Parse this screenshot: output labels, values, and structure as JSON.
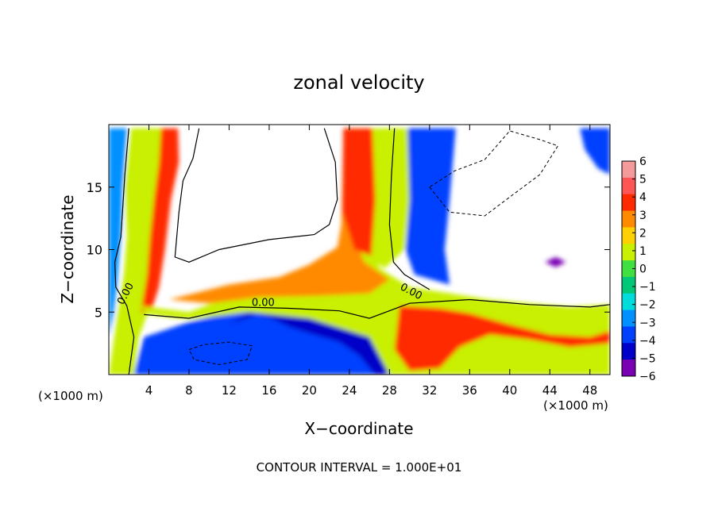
{
  "chart_data": {
    "type": "heatmap",
    "title": "zonal velocity",
    "xlabel": "X−coordinate",
    "ylabel": "Z−coordinate",
    "x_unit_left": "(×1000 m)",
    "x_unit_right": "(×1000 m)",
    "footer": "CONTOUR INTERVAL = 1.000E+01",
    "xlim": [
      0,
      50
    ],
    "ylim": [
      0,
      20
    ],
    "xticks": [
      4,
      8,
      12,
      16,
      20,
      24,
      28,
      32,
      36,
      40,
      44,
      48
    ],
    "yticks": [
      5,
      10,
      15
    ],
    "colorbar": {
      "ticks": [
        6,
        5,
        4,
        3,
        2,
        1,
        0,
        -1,
        -2,
        -3,
        -4,
        -5,
        -6
      ],
      "tick_labels": [
        "6",
        "5",
        "4",
        "3",
        "2",
        "1",
        "0",
        "−1",
        "−2",
        "−3",
        "−4",
        "−5",
        "−6"
      ],
      "colors": [
        "#f49a9a",
        "#ff5555",
        "#ff2a00",
        "#ff8a00",
        "#ffd000",
        "#c8f000",
        "#40e040",
        "#00c878",
        "#00dcdc",
        "#0090ff",
        "#0040ff",
        "#0000c8",
        "#7a00b4"
      ]
    },
    "contour_labels": [
      "0.00",
      "0.00",
      "0.00"
    ],
    "regions": [
      {
        "name": "left-column",
        "points": [
          [
            0,
            0
          ],
          [
            0.8,
            4.5
          ],
          [
            1.5,
            8
          ],
          [
            1.8,
            11
          ],
          [
            1.6,
            15
          ],
          [
            2.2,
            19.7
          ],
          [
            6,
            19.7
          ],
          [
            6.5,
            17
          ],
          [
            5.5,
            13
          ],
          [
            5,
            10
          ],
          [
            4.6,
            7
          ],
          [
            4,
            5.2
          ],
          [
            3,
            3
          ],
          [
            2.5,
            0
          ]
        ],
        "value": 1
      },
      {
        "name": "left-edge-negative",
        "points": [
          [
            0,
            3
          ],
          [
            0,
            19.7
          ],
          [
            1.8,
            19.7
          ],
          [
            1.4,
            15
          ],
          [
            1.2,
            11
          ],
          [
            0.8,
            7
          ],
          [
            0.5,
            5
          ]
        ],
        "value": -3
      },
      {
        "name": "left-column-core",
        "points": [
          [
            3.2,
            5
          ],
          [
            3.8,
            8
          ],
          [
            4.1,
            11
          ],
          [
            4.5,
            14
          ],
          [
            5,
            17
          ],
          [
            5.2,
            19.7
          ],
          [
            6.9,
            19.7
          ],
          [
            7,
            17
          ],
          [
            6.2,
            14
          ],
          [
            5.6,
            10
          ],
          [
            5,
            7
          ],
          [
            4.2,
            5
          ]
        ],
        "value": 4
      },
      {
        "name": "low-jet-negative",
        "points": [
          [
            2.5,
            0
          ],
          [
            3.5,
            3
          ],
          [
            8,
            4.2
          ],
          [
            14,
            5.3
          ],
          [
            20,
            4.6
          ],
          [
            24,
            3.8
          ],
          [
            26.5,
            2.5
          ],
          [
            28,
            0
          ]
        ],
        "value": -4
      },
      {
        "name": "low-jet-core",
        "points": [
          [
            12,
            4
          ],
          [
            14,
            5
          ],
          [
            16,
            4.6
          ],
          [
            18,
            3.8
          ],
          [
            20,
            3.3
          ],
          [
            23,
            2.6
          ],
          [
            25,
            1.5
          ],
          [
            26.5,
            0
          ],
          [
            28,
            0
          ],
          [
            27,
            2.5
          ],
          [
            24.5,
            3.9
          ],
          [
            20,
            4.8
          ],
          [
            16,
            5.2
          ]
        ],
        "value": -5
      },
      {
        "name": "low-level-band",
        "points": [
          [
            3,
            5.5
          ],
          [
            8,
            5
          ],
          [
            13,
            6.5
          ],
          [
            17,
            7
          ],
          [
            20,
            8.2
          ],
          [
            22.5,
            9.8
          ],
          [
            23.4,
            11
          ],
          [
            23.5,
            19.7
          ],
          [
            25,
            19.7
          ],
          [
            25.3,
            13
          ],
          [
            27,
            8.5
          ],
          [
            30,
            7
          ],
          [
            34,
            6.5
          ],
          [
            38,
            6
          ],
          [
            42,
            5.7
          ],
          [
            46,
            5.4
          ],
          [
            50,
            5.6
          ],
          [
            50,
            0
          ],
          [
            28,
            0
          ],
          [
            26,
            3
          ],
          [
            20,
            4.5
          ],
          [
            14,
            5
          ],
          [
            8,
            4.4
          ],
          [
            4,
            4.8
          ]
        ],
        "value": 1
      },
      {
        "name": "low-level-warm",
        "points": [
          [
            6,
            6
          ],
          [
            12,
            7.2
          ],
          [
            17,
            7.8
          ],
          [
            20,
            8.8
          ],
          [
            22.8,
            10.2
          ],
          [
            23.2,
            12
          ],
          [
            23.4,
            19.7
          ],
          [
            24.2,
            19.7
          ],
          [
            24,
            12
          ],
          [
            25.5,
            9
          ],
          [
            28,
            7.6
          ],
          [
            26,
            6.5
          ],
          [
            21,
            6.3
          ],
          [
            15,
            6.2
          ],
          [
            10,
            5.7
          ]
        ],
        "value": 3
      },
      {
        "name": "rising-plume-center",
        "points": [
          [
            23.5,
            19.7
          ],
          [
            23.8,
            14
          ],
          [
            25,
            10
          ],
          [
            27.5,
            8.5
          ],
          [
            29.5,
            10
          ],
          [
            30,
            14
          ],
          [
            29.8,
            19.7
          ]
        ],
        "value": 1
      },
      {
        "name": "rising-plume-red",
        "points": [
          [
            23.4,
            19.7
          ],
          [
            23.3,
            13
          ],
          [
            24.5,
            10
          ],
          [
            26.2,
            9.5
          ],
          [
            26.6,
            14
          ],
          [
            26.3,
            19.7
          ]
        ],
        "value": 4
      },
      {
        "name": "rising-plume-negative",
        "points": [
          [
            29.8,
            19.7
          ],
          [
            30,
            14
          ],
          [
            29.6,
            10
          ],
          [
            30.5,
            8
          ],
          [
            34,
            7.2
          ],
          [
            33.5,
            10
          ],
          [
            34,
            14
          ],
          [
            34.6,
            19.7
          ]
        ],
        "value": -4
      },
      {
        "name": "surface-warm-patch",
        "points": [
          [
            29,
            5.5
          ],
          [
            33,
            5.3
          ],
          [
            36,
            4.9
          ],
          [
            40,
            4
          ],
          [
            44,
            3.2
          ],
          [
            48,
            3
          ],
          [
            50,
            3.5
          ],
          [
            50,
            2.5
          ],
          [
            46,
            2.2
          ],
          [
            42,
            2.8
          ],
          [
            38,
            3.2
          ],
          [
            35,
            2.2
          ],
          [
            33,
            0.5
          ],
          [
            30,
            0.3
          ],
          [
            28.5,
            2
          ]
        ],
        "value": 4
      },
      {
        "name": "right-edge-negative",
        "points": [
          [
            47,
            19.7
          ],
          [
            47.5,
            18
          ],
          [
            48.8,
            16.5
          ],
          [
            50,
            16
          ],
          [
            50,
            19.7
          ]
        ],
        "value": -4
      },
      {
        "name": "right-blob-negative",
        "points": [
          [
            43.5,
            9
          ],
          [
            44.6,
            9.4
          ],
          [
            45.6,
            9
          ],
          [
            44.6,
            8.6
          ]
        ],
        "value": -6
      }
    ],
    "zero_contours": [
      [
        [
          2,
          19.7
        ],
        [
          1.6,
          16
        ],
        [
          1.4,
          13.5
        ],
        [
          1.2,
          11
        ],
        [
          0.6,
          9
        ],
        [
          0.7,
          7
        ],
        [
          1.8,
          5.5
        ],
        [
          2.5,
          3
        ],
        [
          2,
          0
        ]
      ],
      [
        [
          3.5,
          4.8
        ],
        [
          8,
          4.5
        ],
        [
          13,
          5.4
        ],
        [
          18,
          5.3
        ],
        [
          23,
          5.1
        ],
        [
          26,
          4.5
        ],
        [
          30,
          5.7
        ],
        [
          36,
          6
        ],
        [
          42,
          5.6
        ],
        [
          48,
          5.4
        ],
        [
          50,
          5.6
        ]
      ],
      [
        [
          28.5,
          19.7
        ],
        [
          28.2,
          16
        ],
        [
          28,
          12
        ],
        [
          28.4,
          9
        ],
        [
          29.5,
          8
        ],
        [
          32,
          6.8
        ]
      ],
      [
        [
          9,
          19.7
        ],
        [
          8.4,
          17.3
        ],
        [
          7.4,
          15.5
        ],
        [
          7,
          13
        ],
        [
          6.6,
          9.4
        ],
        [
          8,
          9
        ],
        [
          11,
          10
        ],
        [
          16,
          10.8
        ],
        [
          20.5,
          11.2
        ],
        [
          22,
          12
        ],
        [
          22.8,
          14
        ],
        [
          22.6,
          17
        ],
        [
          21.5,
          19.7
        ]
      ]
    ],
    "negative_contours": [
      [
        [
          32,
          15
        ],
        [
          34,
          13
        ],
        [
          37.5,
          12.7
        ],
        [
          40.5,
          14.5
        ],
        [
          43,
          16
        ],
        [
          44.8,
          18.3
        ],
        [
          43,
          18.8
        ],
        [
          40,
          19.5
        ],
        [
          37.5,
          17.2
        ],
        [
          34.5,
          16.3
        ]
      ],
      [
        [
          8,
          2
        ],
        [
          9.5,
          2.4
        ],
        [
          12,
          2.6
        ],
        [
          14.3,
          2.3
        ],
        [
          13.8,
          1.2
        ],
        [
          11,
          0.8
        ],
        [
          8.5,
          1.2
        ]
      ]
    ]
  }
}
